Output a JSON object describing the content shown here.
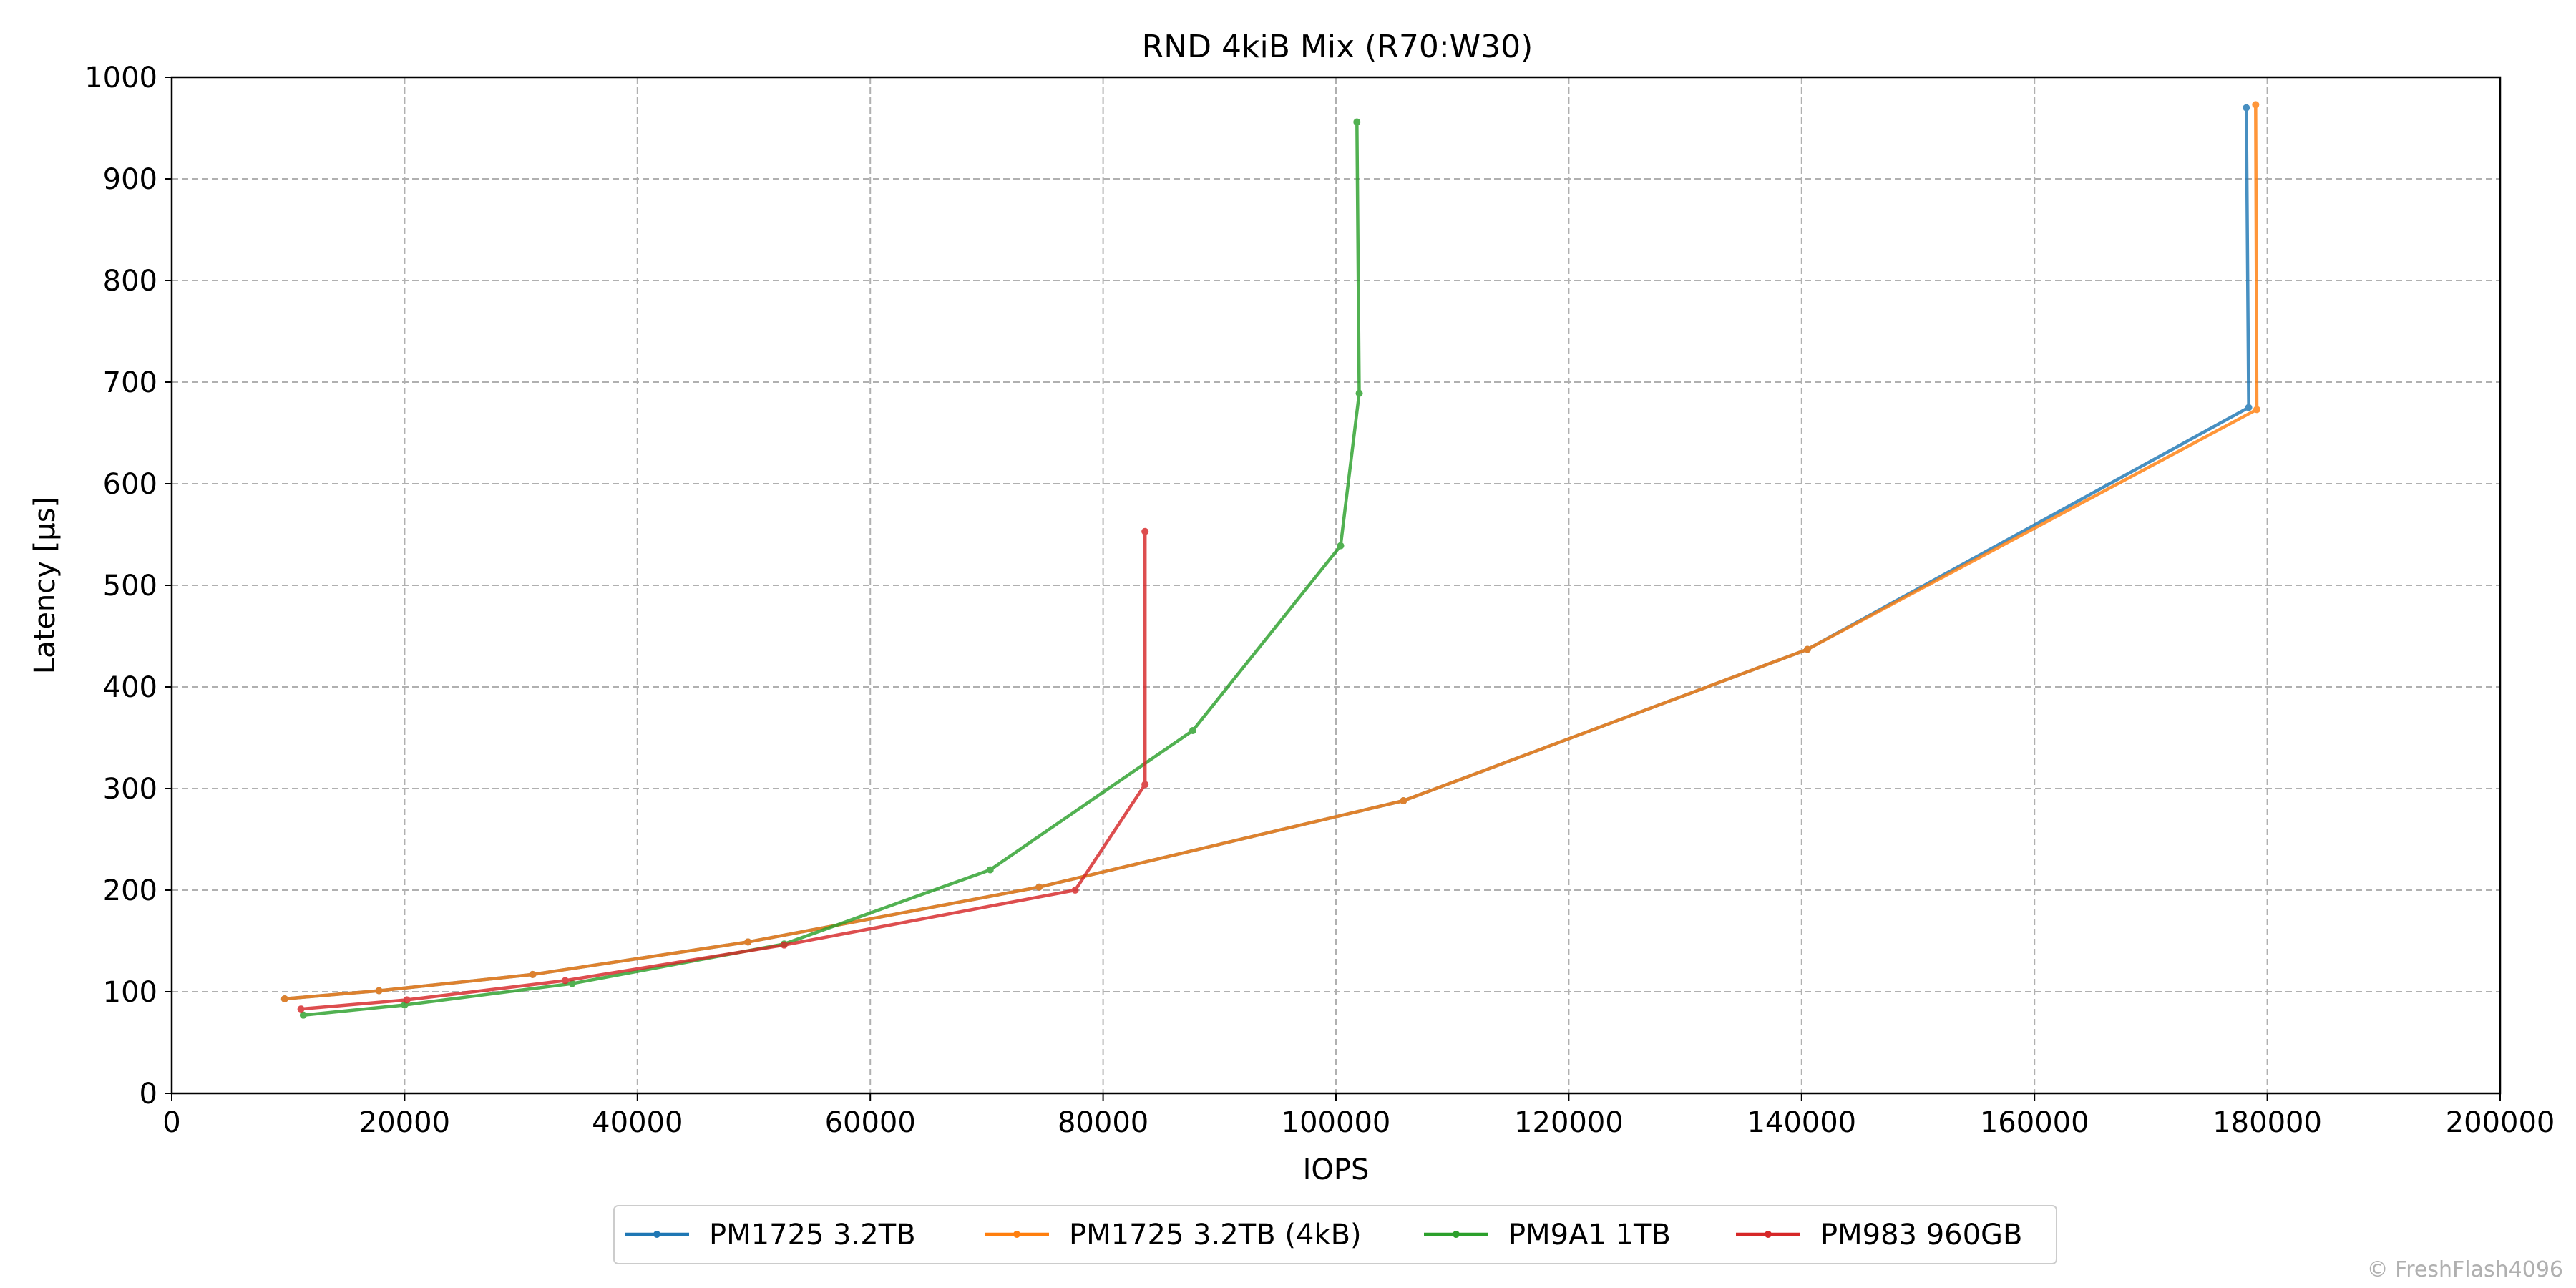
{
  "chart_data": {
    "type": "line",
    "title": "RND 4kiB Mix (R70:W30)",
    "xlabel": "IOPS",
    "ylabel": "Latency [µs]",
    "xlim": [
      0,
      200000
    ],
    "ylim": [
      0,
      1000
    ],
    "xticks": [
      0,
      20000,
      40000,
      60000,
      80000,
      100000,
      120000,
      140000,
      160000,
      180000,
      200000
    ],
    "yticks": [
      0,
      100,
      200,
      300,
      400,
      500,
      600,
      700,
      800,
      900,
      1000
    ],
    "grid": true,
    "legend_position": "bottom-center",
    "series": [
      {
        "name": "PM1725 3.2TB",
        "color": "#1f77b4",
        "x": [
          9700,
          17800,
          31000,
          49500,
          74500,
          105800,
          140500,
          178400,
          178200
        ],
        "y": [
          93,
          101,
          117,
          149,
          203,
          288,
          437,
          675,
          970
        ]
      },
      {
        "name": "PM1725 3.2TB (4kB)",
        "color": "#ff7f0e",
        "x": [
          9700,
          17800,
          31000,
          49500,
          74500,
          105800,
          140500,
          179100,
          179000
        ],
        "y": [
          93,
          101,
          117,
          149,
          203,
          288,
          437,
          673,
          973
        ]
      },
      {
        "name": "PM9A1 1TB",
        "color": "#2ca02c",
        "x": [
          11300,
          20000,
          34400,
          52600,
          70300,
          87700,
          100400,
          102000,
          101800
        ],
        "y": [
          77,
          87,
          108,
          147,
          220,
          357,
          539,
          689,
          956
        ]
      },
      {
        "name": "PM983 960GB",
        "color": "#d62728",
        "x": [
          11100,
          20200,
          33800,
          52600,
          77600,
          83600,
          83600
        ],
        "y": [
          83,
          92,
          111,
          146,
          200,
          304,
          553
        ]
      }
    ]
  },
  "watermark": "© FreshFlash4096"
}
